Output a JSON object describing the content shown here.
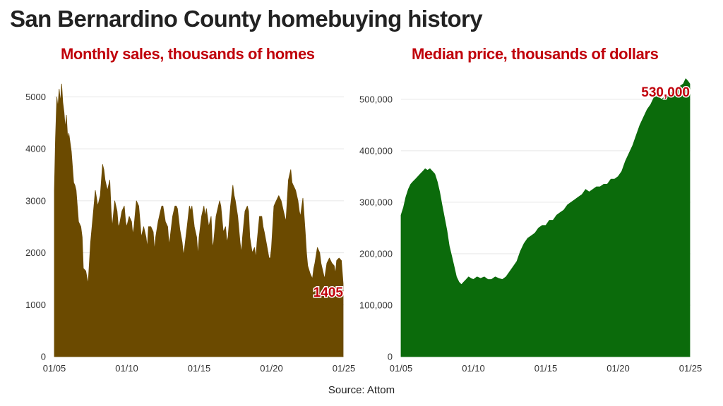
{
  "title": "San Bernardino County homebuying history",
  "source": "Source: Attom",
  "chart_data": [
    {
      "type": "area",
      "title": "Monthly sales, thousands of homes",
      "xlabel": "",
      "ylabel": "",
      "color": "#6b4a00",
      "ylim": [
        0,
        5400
      ],
      "yticks": [
        0,
        1000,
        2000,
        3000,
        4000,
        5000
      ],
      "ytick_labels": [
        "0",
        "1000",
        "2000",
        "3000",
        "4000",
        "5000"
      ],
      "xlim": [
        2005.0,
        2025.0
      ],
      "xticks": [
        2005,
        2010,
        2015,
        2020,
        2025
      ],
      "xtick_labels": [
        "01/05",
        "01/10",
        "01/15",
        "01/20",
        "01/25"
      ],
      "grid": "horizontal",
      "annotation": {
        "text": "1405",
        "x": 2024.95,
        "y": 1150
      },
      "x": [
        2005.0,
        2005.08,
        2005.17,
        2005.25,
        2005.33,
        2005.42,
        2005.5,
        2005.58,
        2005.67,
        2005.75,
        2005.83,
        2005.92,
        2006.0,
        2006.17,
        2006.33,
        2006.42,
        2006.5,
        2006.67,
        2006.83,
        2006.92,
        2007.0,
        2007.17,
        2007.33,
        2007.5,
        2007.67,
        2007.83,
        2008.0,
        2008.17,
        2008.33,
        2008.42,
        2008.5,
        2008.67,
        2008.83,
        2008.92,
        2009.0,
        2009.17,
        2009.33,
        2009.42,
        2009.5,
        2009.67,
        2009.83,
        2009.92,
        2010.0,
        2010.17,
        2010.33,
        2010.42,
        2010.5,
        2010.67,
        2010.83,
        2010.92,
        2011.0,
        2011.17,
        2011.33,
        2011.42,
        2011.5,
        2011.67,
        2011.83,
        2011.92,
        2012.0,
        2012.17,
        2012.33,
        2012.42,
        2012.5,
        2012.67,
        2012.83,
        2012.92,
        2013.0,
        2013.17,
        2013.33,
        2013.42,
        2013.5,
        2013.67,
        2013.83,
        2013.92,
        2014.0,
        2014.17,
        2014.33,
        2014.42,
        2014.5,
        2014.67,
        2014.83,
        2014.92,
        2015.0,
        2015.17,
        2015.33,
        2015.42,
        2015.5,
        2015.67,
        2015.83,
        2015.92,
        2016.0,
        2016.17,
        2016.33,
        2016.42,
        2016.5,
        2016.67,
        2016.83,
        2016.92,
        2017.0,
        2017.17,
        2017.33,
        2017.42,
        2017.5,
        2017.67,
        2017.83,
        2017.92,
        2018.0,
        2018.17,
        2018.33,
        2018.42,
        2018.5,
        2018.67,
        2018.83,
        2018.92,
        2019.0,
        2019.17,
        2019.33,
        2019.42,
        2019.5,
        2019.67,
        2019.83,
        2019.92,
        2020.0,
        2020.17,
        2020.33,
        2020.5,
        2020.67,
        2020.83,
        2021.0,
        2021.17,
        2021.33,
        2021.42,
        2021.5,
        2021.67,
        2021.83,
        2021.92,
        2022.0,
        2022.17,
        2022.33,
        2022.42,
        2022.5,
        2022.67,
        2022.83,
        2022.92,
        2023.0,
        2023.17,
        2023.33,
        2023.42,
        2023.5,
        2023.67,
        2023.83,
        2023.92,
        2024.0,
        2024.17,
        2024.33,
        2024.42,
        2024.5,
        2024.67,
        2024.83,
        2024.95
      ],
      "values": [
        3200,
        4200,
        5000,
        4800,
        5150,
        4900,
        5250,
        4900,
        4700,
        4400,
        4650,
        4200,
        4300,
        3950,
        3350,
        3300,
        3200,
        2600,
        2500,
        2300,
        1700,
        1650,
        1400,
        2200,
        2700,
        3200,
        2900,
        3100,
        3700,
        3600,
        3400,
        3200,
        3400,
        2800,
        2500,
        3000,
        2800,
        2500,
        2550,
        2800,
        2900,
        2600,
        2500,
        2700,
        2600,
        2350,
        2500,
        3000,
        2900,
        2600,
        2300,
        2500,
        2300,
        2100,
        2500,
        2500,
        2400,
        2050,
        2300,
        2600,
        2800,
        2900,
        2900,
        2600,
        2500,
        2150,
        2300,
        2700,
        2900,
        2900,
        2850,
        2450,
        2200,
        1950,
        2100,
        2500,
        2900,
        2800,
        2900,
        2500,
        2300,
        1950,
        2300,
        2700,
        2900,
        2700,
        2850,
        2500,
        2700,
        2100,
        2200,
        2700,
        2900,
        3000,
        2900,
        2400,
        2500,
        2200,
        2300,
        2900,
        3300,
        3100,
        3000,
        2700,
        2200,
        2000,
        2300,
        2800,
        2900,
        2800,
        2300,
        2000,
        2100,
        1900,
        2200,
        2700,
        2700,
        2500,
        2400,
        2150,
        1900,
        1900,
        2100,
        2900,
        3000,
        3100,
        3000,
        2800,
        2600,
        3400,
        3600,
        3350,
        3300,
        3200,
        3000,
        2800,
        2700,
        3050,
        2400,
        2000,
        1750,
        1600,
        1500,
        1700,
        1800,
        2100,
        2000,
        1800,
        1700,
        1500,
        1800,
        1850,
        1900,
        1800,
        1750,
        1600,
        1850,
        1900,
        1850,
        1405
      ]
    },
    {
      "type": "area",
      "title": "Median price, thousands of dollars",
      "xlabel": "",
      "ylabel": "",
      "color": "#0b6b0b",
      "ylim": [
        0,
        545000
      ],
      "yticks": [
        0,
        100000,
        200000,
        300000,
        400000,
        500000
      ],
      "ytick_labels": [
        "0",
        "100,000",
        "200,000",
        "300,000",
        "400,000",
        "500,000"
      ],
      "xlim": [
        2005.0,
        2025.0
      ],
      "xticks": [
        2005,
        2010,
        2015,
        2020,
        2025
      ],
      "xtick_labels": [
        "01/05",
        "01/10",
        "01/15",
        "01/20",
        "01/25"
      ],
      "grid": "horizontal",
      "annotation": {
        "text": "530,000",
        "x": 2024.95,
        "y": 505000
      },
      "x": [
        2005.0,
        2005.17,
        2005.33,
        2005.5,
        2005.67,
        2005.83,
        2006.0,
        2006.17,
        2006.33,
        2006.5,
        2006.67,
        2006.83,
        2007.0,
        2007.17,
        2007.33,
        2007.5,
        2007.67,
        2007.83,
        2008.0,
        2008.17,
        2008.33,
        2008.5,
        2008.67,
        2008.83,
        2009.0,
        2009.17,
        2009.33,
        2009.5,
        2009.67,
        2009.83,
        2010.0,
        2010.25,
        2010.5,
        2010.75,
        2011.0,
        2011.25,
        2011.5,
        2011.75,
        2012.0,
        2012.25,
        2012.5,
        2012.75,
        2013.0,
        2013.25,
        2013.5,
        2013.75,
        2014.0,
        2014.25,
        2014.5,
        2014.75,
        2015.0,
        2015.25,
        2015.5,
        2015.75,
        2016.0,
        2016.25,
        2016.5,
        2016.75,
        2017.0,
        2017.25,
        2017.5,
        2017.75,
        2018.0,
        2018.25,
        2018.5,
        2018.75,
        2019.0,
        2019.25,
        2019.5,
        2019.75,
        2020.0,
        2020.25,
        2020.5,
        2020.75,
        2021.0,
        2021.25,
        2021.5,
        2021.75,
        2022.0,
        2022.25,
        2022.5,
        2022.75,
        2023.0,
        2023.25,
        2023.5,
        2023.75,
        2024.0,
        2024.25,
        2024.5,
        2024.67,
        2024.83,
        2024.95
      ],
      "values": [
        275000,
        290000,
        310000,
        325000,
        335000,
        340000,
        345000,
        350000,
        355000,
        360000,
        365000,
        362000,
        365000,
        360000,
        355000,
        340000,
        320000,
        295000,
        270000,
        245000,
        215000,
        195000,
        175000,
        155000,
        145000,
        140000,
        145000,
        150000,
        155000,
        152000,
        150000,
        155000,
        152000,
        155000,
        150000,
        150000,
        155000,
        152000,
        150000,
        155000,
        165000,
        175000,
        185000,
        205000,
        220000,
        230000,
        235000,
        240000,
        250000,
        255000,
        255000,
        265000,
        265000,
        275000,
        280000,
        285000,
        295000,
        300000,
        305000,
        310000,
        315000,
        325000,
        320000,
        325000,
        330000,
        330000,
        335000,
        335000,
        345000,
        345000,
        350000,
        360000,
        380000,
        395000,
        410000,
        430000,
        450000,
        465000,
        480000,
        490000,
        505000,
        505000,
        500000,
        505000,
        510000,
        515000,
        520000,
        525000,
        530000,
        540000,
        535000,
        530000
      ]
    }
  ]
}
